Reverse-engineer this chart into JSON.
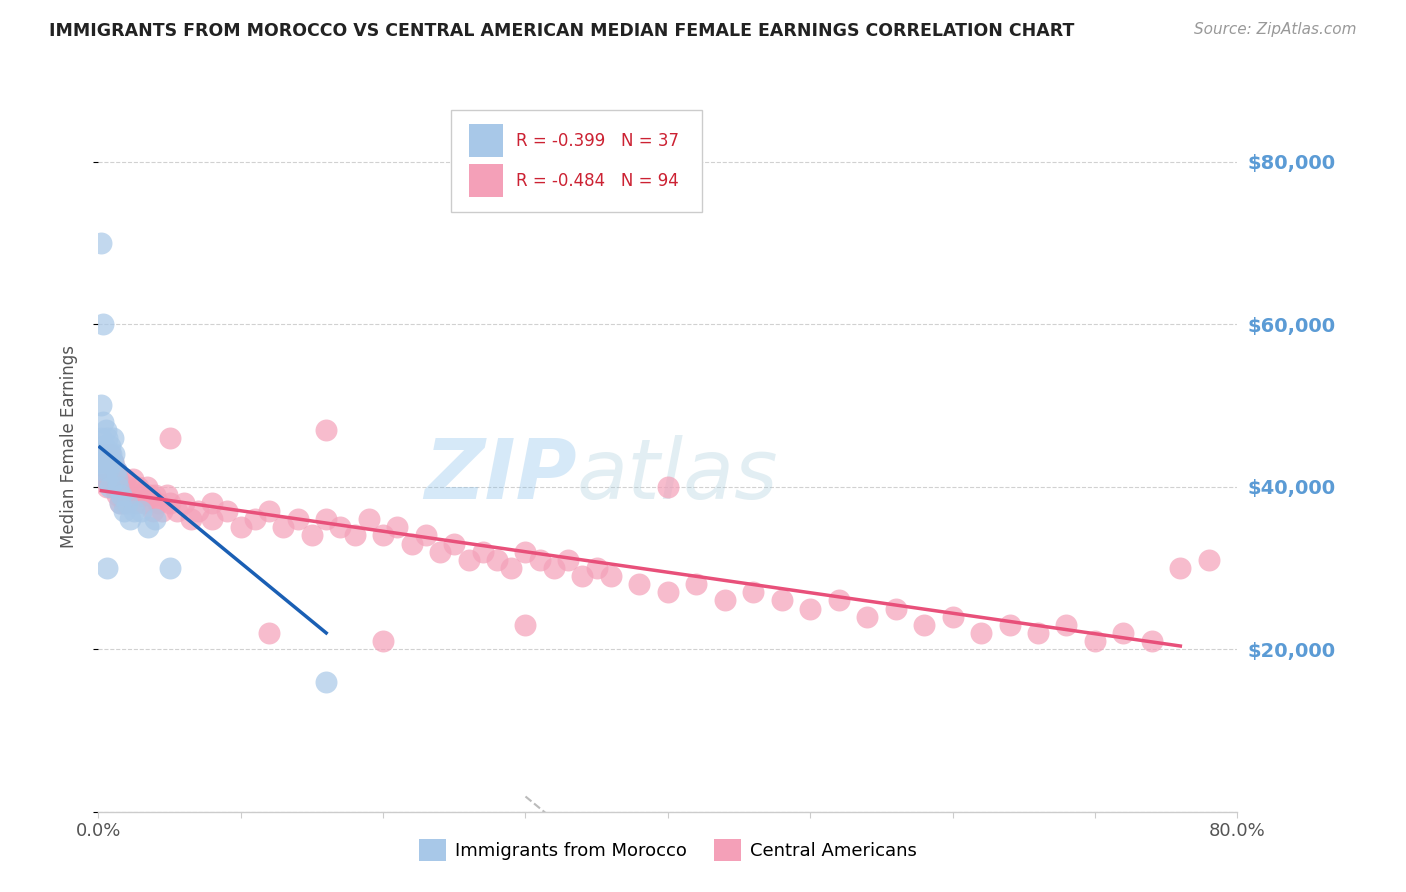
{
  "title": "IMMIGRANTS FROM MOROCCO VS CENTRAL AMERICAN MEDIAN FEMALE EARNINGS CORRELATION CHART",
  "source": "Source: ZipAtlas.com",
  "ylabel": "Median Female Earnings",
  "xlim": [
    0,
    0.8
  ],
  "ylim": [
    0,
    90000
  ],
  "yticks": [
    0,
    20000,
    40000,
    60000,
    80000
  ],
  "ytick_labels": [
    "",
    "$20,000",
    "$40,000",
    "$60,000",
    "$80,000"
  ],
  "watermark": "ZIPAtlas",
  "legend_r1": "-0.399",
  "legend_n1": "37",
  "legend_r2": "-0.484",
  "legend_n2": "94",
  "morocco_color": "#a8c8e8",
  "central_color": "#f4a0b8",
  "line_morocco_color": "#1a5fb4",
  "line_central_color": "#e8507a",
  "background_color": "#ffffff",
  "grid_color": "#cccccc",
  "title_color": "#222222",
  "source_color": "#999999",
  "yaxis_label_color": "#5b9bd5",
  "morocco_x": [
    0.001,
    0.002,
    0.002,
    0.003,
    0.003,
    0.003,
    0.004,
    0.004,
    0.005,
    0.005,
    0.006,
    0.006,
    0.007,
    0.007,
    0.008,
    0.008,
    0.009,
    0.01,
    0.01,
    0.011,
    0.012,
    0.013,
    0.014,
    0.015,
    0.016,
    0.018,
    0.02,
    0.022,
    0.025,
    0.03,
    0.035,
    0.04,
    0.05,
    0.16,
    0.003,
    0.002,
    0.006
  ],
  "morocco_y": [
    43000,
    46000,
    50000,
    42000,
    44000,
    48000,
    45000,
    43000,
    47000,
    41000,
    44000,
    46000,
    43000,
    42000,
    45000,
    40000,
    44000,
    43000,
    46000,
    44000,
    42000,
    41000,
    40000,
    38000,
    39000,
    37000,
    38000,
    36000,
    37000,
    37000,
    35000,
    36000,
    30000,
    16000,
    60000,
    70000,
    30000
  ],
  "central_x": [
    0.002,
    0.003,
    0.004,
    0.005,
    0.006,
    0.007,
    0.008,
    0.009,
    0.01,
    0.011,
    0.012,
    0.013,
    0.014,
    0.015,
    0.016,
    0.017,
    0.018,
    0.019,
    0.02,
    0.022,
    0.024,
    0.026,
    0.028,
    0.03,
    0.032,
    0.034,
    0.036,
    0.038,
    0.04,
    0.042,
    0.045,
    0.048,
    0.05,
    0.055,
    0.06,
    0.065,
    0.07,
    0.08,
    0.09,
    0.1,
    0.11,
    0.12,
    0.13,
    0.14,
    0.15,
    0.16,
    0.17,
    0.18,
    0.19,
    0.2,
    0.21,
    0.22,
    0.23,
    0.24,
    0.25,
    0.26,
    0.27,
    0.28,
    0.29,
    0.3,
    0.31,
    0.32,
    0.33,
    0.34,
    0.35,
    0.36,
    0.38,
    0.4,
    0.42,
    0.44,
    0.46,
    0.48,
    0.5,
    0.52,
    0.54,
    0.56,
    0.58,
    0.6,
    0.62,
    0.64,
    0.66,
    0.68,
    0.7,
    0.72,
    0.74,
    0.76,
    0.78,
    0.05,
    0.08,
    0.12,
    0.16,
    0.2,
    0.3,
    0.4
  ],
  "central_y": [
    42000,
    44000,
    41000,
    43000,
    40000,
    42000,
    44000,
    41000,
    43000,
    40000,
    42000,
    39000,
    41000,
    38000,
    40000,
    39000,
    38000,
    41000,
    40000,
    39000,
    41000,
    38000,
    40000,
    39000,
    38000,
    40000,
    39000,
    37000,
    39000,
    38000,
    37000,
    39000,
    38000,
    37000,
    38000,
    36000,
    37000,
    36000,
    37000,
    35000,
    36000,
    37000,
    35000,
    36000,
    34000,
    36000,
    35000,
    34000,
    36000,
    34000,
    35000,
    33000,
    34000,
    32000,
    33000,
    31000,
    32000,
    31000,
    30000,
    32000,
    31000,
    30000,
    31000,
    29000,
    30000,
    29000,
    28000,
    27000,
    28000,
    26000,
    27000,
    26000,
    25000,
    26000,
    24000,
    25000,
    23000,
    24000,
    22000,
    23000,
    22000,
    23000,
    21000,
    22000,
    21000,
    30000,
    31000,
    46000,
    38000,
    22000,
    47000,
    21000,
    23000,
    40000
  ]
}
